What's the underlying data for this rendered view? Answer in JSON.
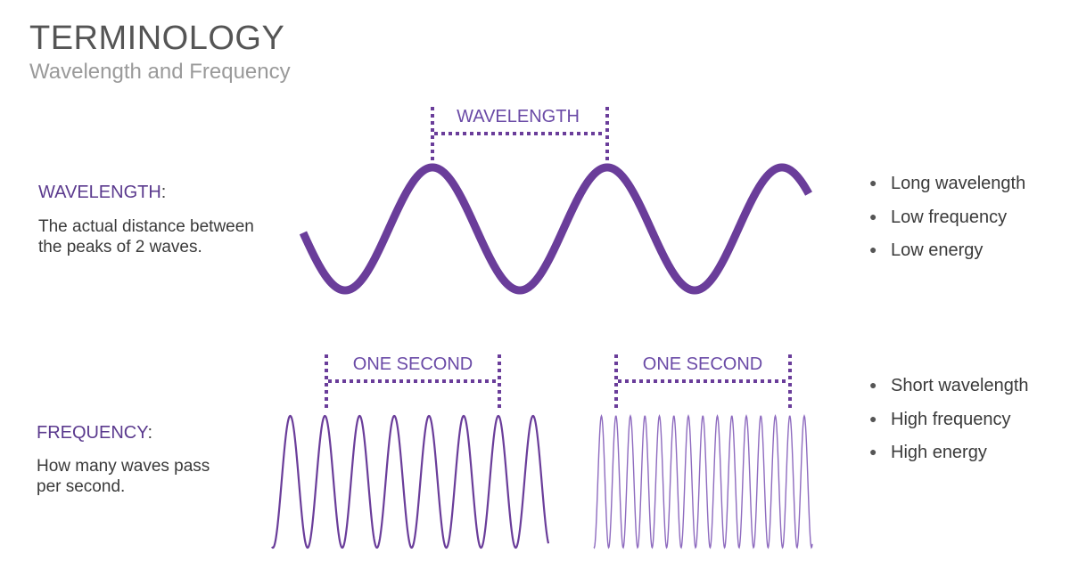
{
  "header": {
    "title": "TERMINOLOGY",
    "subtitle": "Wavelength and Frequency"
  },
  "wavelength": {
    "term": "WAVELENGTH",
    "colon": ":",
    "description_lines": [
      "The actual distance between",
      "the peaks of 2 waves."
    ],
    "measure_label": "WAVELENGTH",
    "bullets": [
      "Long wavelength",
      "Low frequency",
      "Low energy"
    ]
  },
  "frequency": {
    "term": "FREQUENCY",
    "colon": ":",
    "description_lines": [
      "How many waves pass",
      "per second."
    ],
    "measure_label_left": "ONE SECOND",
    "measure_label_right": "ONE SECOND",
    "bullets": [
      "Short wavelength",
      "High frequency",
      "High energy"
    ]
  },
  "colors": {
    "accent": "#5b3a8e",
    "wave": "#6a3d9a",
    "wave_light": "#8e6bbf"
  }
}
